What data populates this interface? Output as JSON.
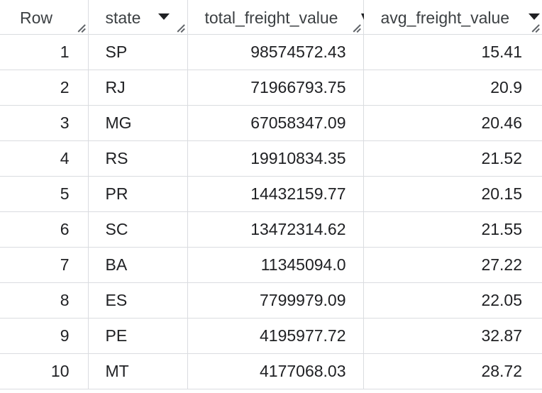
{
  "columns": {
    "row": "Row",
    "state": "state",
    "total": "total_freight_value",
    "avg": "avg_freight_value"
  },
  "rows": [
    {
      "row": "1",
      "state": "SP",
      "total": "98574572.43",
      "avg": "15.41"
    },
    {
      "row": "2",
      "state": "RJ",
      "total": "71966793.75",
      "avg": "20.9"
    },
    {
      "row": "3",
      "state": "MG",
      "total": "67058347.09",
      "avg": "20.46"
    },
    {
      "row": "4",
      "state": "RS",
      "total": "19910834.35",
      "avg": "21.52"
    },
    {
      "row": "5",
      "state": "PR",
      "total": "14432159.77",
      "avg": "20.15"
    },
    {
      "row": "6",
      "state": "SC",
      "total": "13472314.62",
      "avg": "21.55"
    },
    {
      "row": "7",
      "state": "BA",
      "total": "11345094.0",
      "avg": "27.22"
    },
    {
      "row": "8",
      "state": "ES",
      "total": "7799979.09",
      "avg": "22.05"
    },
    {
      "row": "9",
      "state": "PE",
      "total": "4195977.72",
      "avg": "32.87"
    },
    {
      "row": "10",
      "state": "MT",
      "total": "4177068.03",
      "avg": "28.72"
    }
  ],
  "icons": {
    "sort": "sort-down-icon",
    "resize": "column-resize-icon"
  }
}
